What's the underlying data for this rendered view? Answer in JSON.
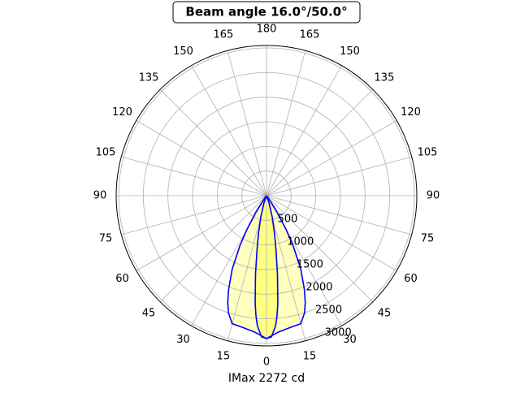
{
  "chart_data": {
    "type": "polar",
    "title": "Beam angle 16.0°/50.0°",
    "xlabel": "IMax 2272 cd",
    "rlim": [
      0,
      3050
    ],
    "rticks": [
      500,
      1000,
      1500,
      2000,
      2500,
      3000
    ],
    "thetaticks": [
      0,
      15,
      30,
      45,
      60,
      75,
      90,
      105,
      120,
      135,
      150,
      165,
      180,
      {
        "value": -15,
        "label": "15"
      },
      {
        "value": -30,
        "label": "30"
      },
      {
        "value": -45,
        "label": "45"
      },
      {
        "value": -60,
        "label": "60"
      },
      {
        "value": -75,
        "label": "75"
      },
      {
        "value": -90,
        "label": "90"
      },
      {
        "value": -105,
        "label": "105"
      },
      {
        "value": -120,
        "label": "120"
      },
      {
        "value": -135,
        "label": "135"
      },
      {
        "value": -150,
        "label": "150"
      },
      {
        "value": -165,
        "label": "165"
      }
    ],
    "grid": true,
    "series": [
      {
        "color": "#0000ff",
        "fill": "#ffffc0",
        "theta": [
          -40,
          -36,
          -33,
          -30,
          -28,
          -25,
          -22,
          -20,
          -18,
          -15,
          -10,
          -5,
          0,
          5,
          10,
          15,
          18,
          20,
          22,
          25,
          28,
          30,
          33,
          36,
          40
        ],
        "values": [
          0,
          100,
          400,
          800,
          1150,
          1650,
          2050,
          2300,
          2500,
          2690,
          2720,
          2780,
          2900,
          2780,
          2720,
          2690,
          2500,
          2300,
          2050,
          1650,
          1150,
          800,
          400,
          100,
          0
        ]
      },
      {
        "color": "#0000ff",
        "fill": "#ffff80",
        "theta": [
          -25,
          -20,
          -15,
          -12,
          -10,
          -8,
          -6,
          -5,
          -4,
          -2,
          0,
          2,
          4,
          5,
          6,
          8,
          10,
          12,
          15,
          20,
          25
        ],
        "values": [
          0,
          150,
          450,
          780,
          1100,
          1600,
          2200,
          2450,
          2650,
          2870,
          2900,
          2870,
          2650,
          2450,
          2200,
          1600,
          1100,
          780,
          450,
          150,
          0
        ]
      }
    ]
  }
}
